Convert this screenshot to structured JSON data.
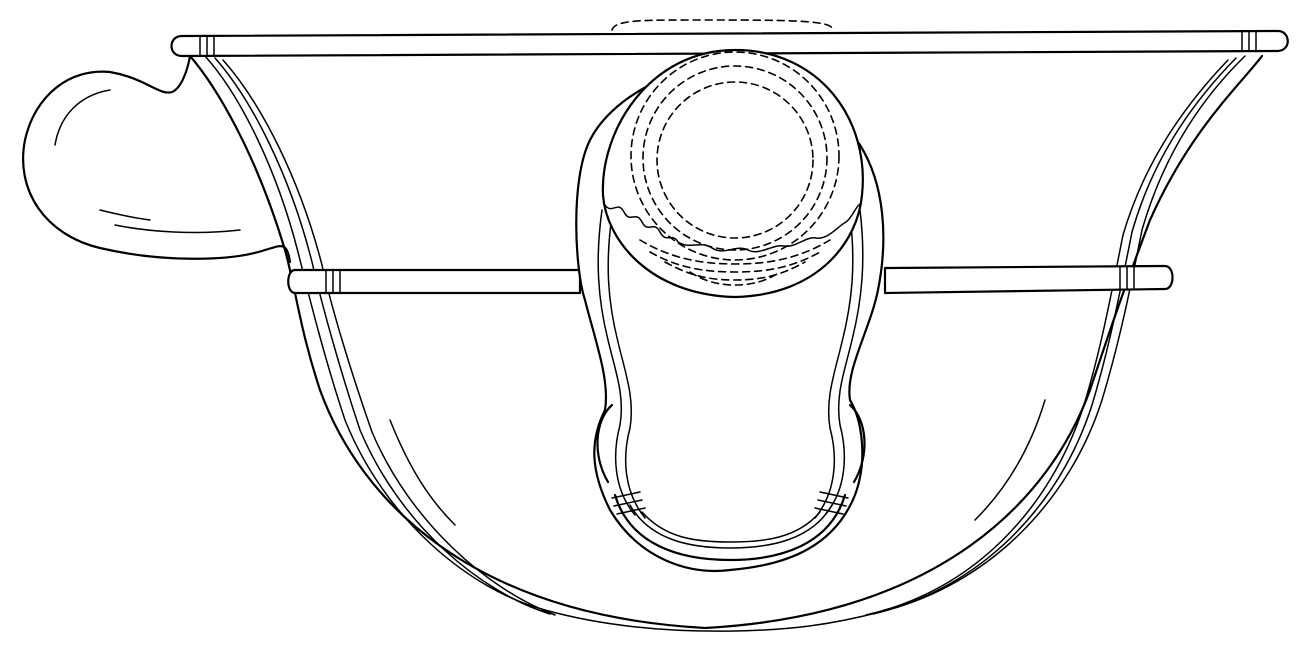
{
  "figure": {
    "subject": "bowl-with-handle-and-spout",
    "view": "front-elevation",
    "style": "black line art on white"
  },
  "colors": {
    "line": "#000000",
    "background": "#ffffff"
  }
}
